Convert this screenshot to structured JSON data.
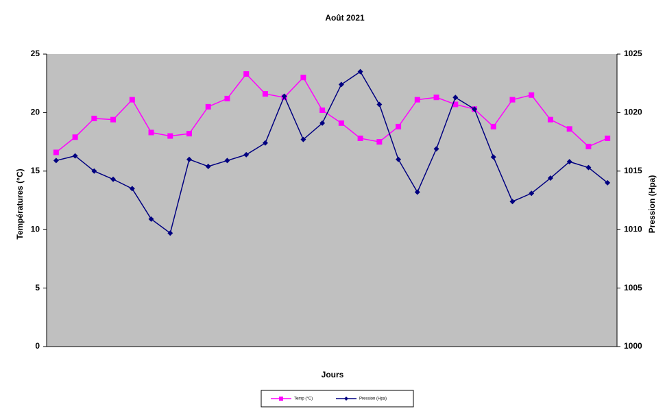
{
  "chart_data": {
    "type": "line",
    "title": "Août 2021",
    "xlabel": "Jours",
    "ylabel": "Températures (°C)",
    "y2label": "Pression (Hpa)",
    "ylim": [
      0,
      25
    ],
    "yticks": [
      0,
      5,
      10,
      15,
      20,
      25
    ],
    "y2lim": [
      1000,
      1025
    ],
    "y2ticks": [
      1000,
      1005,
      1010,
      1015,
      1020,
      1025
    ],
    "legend": "bottom",
    "series": [
      {
        "name": "Temp (°C)",
        "color": "#ff00ff",
        "marker": "square",
        "values": [
          16.6,
          17.9,
          19.5,
          19.4,
          21.1,
          18.3,
          18.0,
          18.2,
          20.5,
          21.2,
          23.3,
          21.6,
          21.3,
          23.0,
          20.2,
          19.1,
          17.8,
          17.5,
          18.8,
          21.1,
          21.3,
          20.7,
          20.3,
          18.8,
          21.1,
          21.5,
          19.4,
          18.6,
          17.1,
          17.8
        ]
      },
      {
        "name": "Pression (Hpa)",
        "color": "#000080",
        "marker": "diamond",
        "axis": "y2",
        "values": [
          1015.9,
          1016.3,
          1015.0,
          1014.3,
          1013.5,
          1010.9,
          1009.7,
          1016.0,
          1015.4,
          1015.9,
          1016.4,
          1017.4,
          1021.4,
          1017.7,
          1019.1,
          1022.4,
          1023.5,
          1020.7,
          1016.0,
          1013.2,
          1016.9,
          1021.3,
          1020.3,
          1016.2,
          1012.4,
          1013.1,
          1014.4,
          1015.8,
          1015.3,
          1014.0
        ]
      }
    ]
  }
}
